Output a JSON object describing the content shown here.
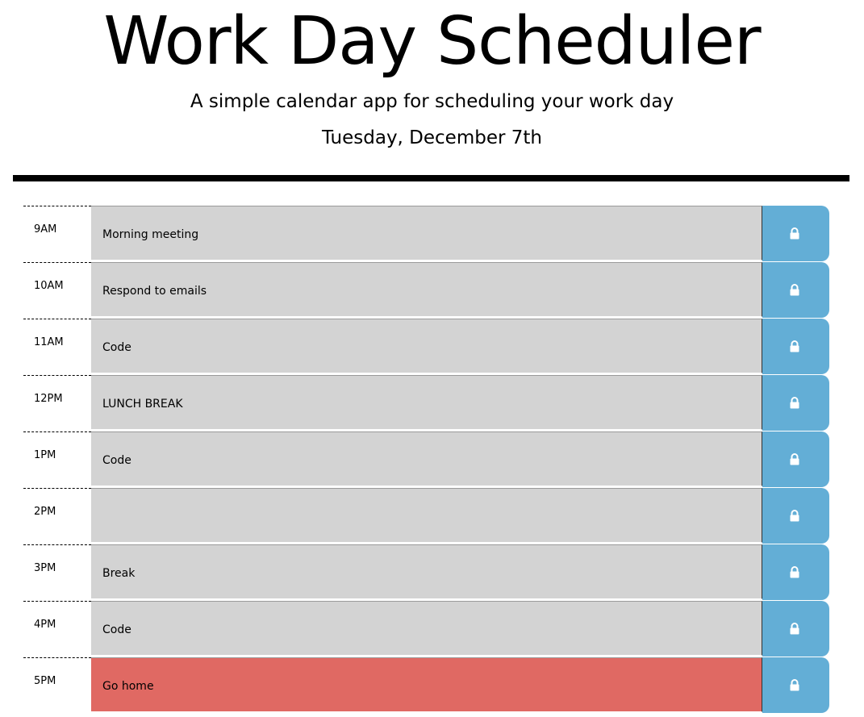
{
  "header": {
    "title": "Work Day Scheduler",
    "subtitle": "A simple calendar app for scheduling your work day",
    "current_day": "Tuesday, December 7th"
  },
  "colors": {
    "past": "#d3d3d3",
    "present": "#e06963",
    "save_button": "#63aed6",
    "divider": "#000000"
  },
  "save_icon": "lock-icon",
  "time_blocks": [
    {
      "hour": "9AM",
      "text": "Morning meeting",
      "state": "past"
    },
    {
      "hour": "10AM",
      "text": "Respond to emails",
      "state": "past"
    },
    {
      "hour": "11AM",
      "text": "Code",
      "state": "past"
    },
    {
      "hour": "12PM",
      "text": "LUNCH BREAK",
      "state": "past"
    },
    {
      "hour": "1PM",
      "text": "Code",
      "state": "past"
    },
    {
      "hour": "2PM",
      "text": "",
      "state": "past"
    },
    {
      "hour": "3PM",
      "text": "Break",
      "state": "past"
    },
    {
      "hour": "4PM",
      "text": "Code",
      "state": "past"
    },
    {
      "hour": "5PM",
      "text": "Go home",
      "state": "present"
    }
  ]
}
